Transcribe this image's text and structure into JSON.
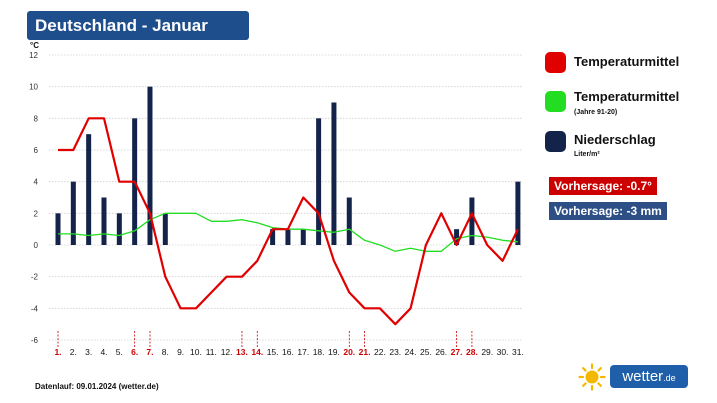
{
  "title": "Deutschland - Januar",
  "legend": {
    "temp_label": "Temperaturmittel",
    "normal_label": "Temperaturmittel",
    "normal_sub": "(Jahre 91-20)",
    "precip_label": "Niederschlag",
    "precip_sub": "Liter/m²"
  },
  "forecast": {
    "temp": "Vorhersage: -0.7°",
    "precip": "Vorhersage: -3 mm"
  },
  "footer": "Datenlauf: 09.01.2024 (wetter.de)",
  "logo": {
    "text": "wetter",
    "suffix": ".de"
  },
  "colors": {
    "title_bg": "#1f4e8c",
    "temp": "#e00000",
    "normal": "#22dd22",
    "precip": "#13234a",
    "temp_badge": "#cc0000",
    "precip_badge": "#2d4f86",
    "weekend": "#cc0000",
    "weekday": "#111111"
  },
  "chart_data": {
    "type": "bar+line",
    "ylabel": "°C",
    "ylim": [
      -6,
      12
    ],
    "yticks": [
      -6,
      -4,
      -2,
      0,
      2,
      4,
      6,
      8,
      10,
      12
    ],
    "categories": [
      "1.",
      "2.",
      "3.",
      "4.",
      "5.",
      "6.",
      "7.",
      "8.",
      "9.",
      "10.",
      "11.",
      "12.",
      "13.",
      "14.",
      "15.",
      "16.",
      "17.",
      "18.",
      "19.",
      "20.",
      "21.",
      "22.",
      "23.",
      "24.",
      "25.",
      "26.",
      "27.",
      "28.",
      "29.",
      "30.",
      "31."
    ],
    "weekend_days": [
      1,
      6,
      7,
      13,
      14,
      20,
      21,
      27,
      28
    ],
    "series": [
      {
        "name": "Niederschlag",
        "kind": "bar",
        "values": [
          2,
          4,
          7,
          3,
          2,
          8,
          10,
          2,
          null,
          null,
          null,
          null,
          null,
          null,
          1,
          1,
          1,
          8,
          9,
          3,
          null,
          null,
          null,
          null,
          null,
          null,
          1,
          3,
          null,
          null,
          4
        ]
      },
      {
        "name": "Temperaturmittel",
        "kind": "line",
        "values": [
          6,
          6,
          8,
          8,
          4,
          4,
          2,
          -2,
          -4,
          -4,
          -3,
          -2,
          -2,
          -1,
          1,
          1,
          3,
          2,
          -1,
          -3,
          -4,
          -4,
          -5,
          -4,
          0,
          2,
          0,
          2,
          0,
          -1,
          1
        ]
      },
      {
        "name": "Temperaturmittel (Jahre 91-20)",
        "kind": "line",
        "values": [
          0.7,
          0.7,
          0.6,
          0.7,
          0.6,
          0.9,
          1.6,
          2.0,
          2.0,
          2.0,
          1.5,
          1.5,
          1.6,
          1.4,
          1.1,
          1.0,
          1.0,
          0.9,
          0.8,
          1.0,
          0.3,
          0.0,
          -0.4,
          -0.2,
          -0.4,
          -0.4,
          0.4,
          0.6,
          0.5,
          0.3,
          0.2
        ]
      }
    ]
  }
}
